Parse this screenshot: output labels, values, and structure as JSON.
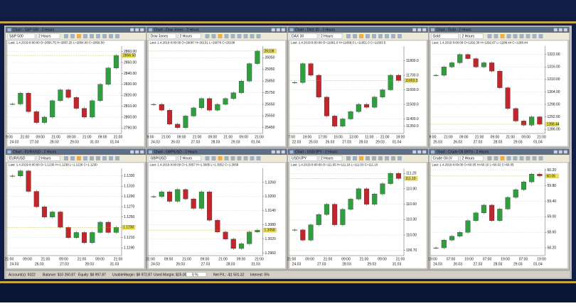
{
  "windows": [
    {
      "title": "Chart - S&P 500 - 2 Hours",
      "symbol": "S&P 500",
      "timeframe": "2 Hours",
      "info": "Last: 1.4.2019 8:00:00 O=2856.75 H=2857.25 L=2854.00 C=2856.50",
      "ylim": [
        2785,
        2865
      ],
      "yticks": [
        {
          "value": 2790,
          "label": "2790.00"
        },
        {
          "value": 2800,
          "label": "2800.00"
        },
        {
          "value": 2810,
          "label": "2810.00"
        },
        {
          "value": 2820,
          "label": "2820.00"
        },
        {
          "value": 2830,
          "label": "2830.00"
        },
        {
          "value": 2840,
          "label": "2840.00"
        },
        {
          "value": 2850,
          "label": "2850.00"
        },
        {
          "value": 2860,
          "label": "2860.00"
        }
      ],
      "times": [
        "9:00",
        "21:00",
        "09:00",
        "21:00",
        "09:00",
        "21:00",
        "09:00",
        "21:00"
      ],
      "dates": [
        "24.03",
        "27.03",
        "28.03",
        "29.03",
        "31.03",
        "01.04"
      ],
      "closes": [
        2812,
        2822,
        2805,
        2795,
        2800,
        2815,
        2825,
        2818,
        2808,
        2800,
        2815,
        2830,
        2845,
        2856.5
      ],
      "last": {
        "value": 2856.5,
        "label": "2856.50"
      }
    },
    {
      "title": "Chart - Dow Jones - 2 Hours",
      "symbol": "Dow Jones",
      "timeframe": "2 Hours",
      "info": "Last: 1.4.2019 8:00:00 O=26097 H=26131 L=26076 C=26108",
      "ylim": [
        25400,
        26150
      ],
      "yticks": [
        25450,
        25550,
        25650,
        25750,
        25850,
        25950,
        26050
      ],
      "times": [
        "9:00",
        "21:00",
        "09:00",
        "21:00",
        "09:00",
        "21:00",
        "09:00",
        "21:00"
      ],
      "dates": [
        "24.03",
        "26.03",
        "27.03",
        "28.03",
        "29.03",
        "01.04"
      ],
      "closes": [
        25650,
        25600,
        25480,
        25450,
        25550,
        25620,
        25700,
        25600,
        25650,
        25700,
        25750,
        25850,
        26000,
        26108
      ],
      "last": {
        "value": 26108,
        "label": "26108"
      }
    },
    {
      "title": "Chart - DAX 30 - 2 Hours",
      "symbol": "DAX 30",
      "timeframe": "2 Hours",
      "info": "Last: 1.4.2019 8:00:00 O=11661.0 H=11668.0 L=11651.0 C=11663.5",
      "ylim": [
        11300,
        11900
      ],
      "yticks": [
        {
          "value": 11350,
          "label": "11350.0"
        },
        {
          "value": 11400,
          "label": "11400.0"
        },
        {
          "value": 11500,
          "label": "11500.0"
        },
        {
          "value": 11600,
          "label": "11600.0"
        },
        {
          "value": 11700,
          "label": "11700.0"
        },
        {
          "value": 11800,
          "label": "11800.0"
        }
      ],
      "times": [
        "7:00",
        "19:00",
        "17:00",
        "15:00",
        "13:00",
        "11:00",
        "21:00",
        "19:00"
      ],
      "dates": [
        "22.03",
        "25.03",
        "26.03",
        "27.03",
        "28.03",
        "29.03",
        "01.04"
      ],
      "closes": [
        11650,
        11780,
        11700,
        11550,
        11420,
        11350,
        11400,
        11450,
        11500,
        11480,
        11550,
        11600,
        11700,
        11663.5
      ],
      "last": {
        "value": 11663.5,
        "label": "11663.5"
      }
    },
    {
      "title": "Chart - Gold - 2 Hours",
      "symbol": "Gold",
      "timeframe": "2 Hours",
      "info": "Last: 1.4.2019 8:00:00 O=1292.30 H=1292.67 L=1288.44 C=1288.44",
      "ylim": [
        1284,
        1326
      ],
      "yticks": [
        {
          "value": 1286,
          "label": "1286.00"
        },
        {
          "value": 1292,
          "label": "1292.00"
        },
        {
          "value": 1298,
          "label": "1298.00"
        },
        {
          "value": 1304,
          "label": "1304.00"
        },
        {
          "value": 1310,
          "label": "1310.00"
        },
        {
          "value": 1316,
          "label": "1316.00"
        },
        {
          "value": 1322,
          "label": "1322.00"
        }
      ],
      "times": [
        "9:00",
        "21:00",
        "09:00",
        "21:00",
        "09:00",
        "21:00",
        "09:00",
        "21:00"
      ],
      "dates": [
        "25.03",
        "26.03",
        "27.03",
        "28.03",
        "29.03",
        "01.04"
      ],
      "closes": [
        1312,
        1316,
        1318,
        1322,
        1320,
        1316,
        1318,
        1314,
        1306,
        1296,
        1290,
        1288,
        1292,
        1288.44
      ],
      "last": {
        "value": 1288.44,
        "label": "1288.44"
      }
    },
    {
      "title": "Chart - EUR/USD - 2 Hours",
      "symbol": "EUR/USD",
      "timeframe": "2 Hours",
      "info": "Last: 1.4.2019 8:00:00 O=1.1230 H=1.1238 L=1.1229 C=1.1230",
      "ylim": [
        1.1175,
        1.1345
      ],
      "yticks": [
        {
          "value": 1.119,
          "label": "1.1190"
        },
        {
          "value": 1.121,
          "label": "1.1210"
        },
        {
          "value": 1.123,
          "label": "1.1230"
        },
        {
          "value": 1.125,
          "label": "1.1250"
        },
        {
          "value": 1.127,
          "label": "1.1270"
        },
        {
          "value": 1.129,
          "label": "1.1290"
        },
        {
          "value": 1.131,
          "label": "1.1310"
        },
        {
          "value": 1.133,
          "label": "1.1330"
        }
      ],
      "times": [
        "21:00",
        "09:00",
        "21:00",
        "09:00",
        "21:00",
        "09:00",
        "21:00"
      ],
      "dates": [
        "24.03",
        "26.03",
        "27.03",
        "28.03",
        "31.03"
      ],
      "closes": [
        1.133,
        1.134,
        1.13,
        1.127,
        1.125,
        1.126,
        1.123,
        1.121,
        1.122,
        1.12,
        1.122,
        1.124,
        1.122,
        1.123
      ],
      "last": {
        "value": 1.123,
        "label": "1.1230"
      }
    },
    {
      "title": "Chart - GBP/USD - 2 Hours",
      "symbol": "GBP/USD",
      "timeframe": "2 Hours",
      "info": "Last: 1.4.2019 8:00:00 O=1.3057 H=1.3085 L=1.3052 C=1.3058",
      "ylim": [
        1.295,
        1.332
      ],
      "yticks": [
        {
          "value": 1.296,
          "label": "1.2960"
        },
        {
          "value": 1.302,
          "label": "1.3020"
        },
        {
          "value": 1.308,
          "label": "1.3080"
        },
        {
          "value": 1.314,
          "label": "1.3140"
        },
        {
          "value": 1.32,
          "label": "1.3200"
        },
        {
          "value": 1.326,
          "label": "1.3260"
        }
      ],
      "times": [
        "21:00",
        "09:00",
        "21:00",
        "09:00",
        "21:00",
        "09:00",
        "21:00"
      ],
      "dates": [
        "24.03",
        "26.03",
        "27.03",
        "28.03",
        "31.03"
      ],
      "closes": [
        1.32,
        1.322,
        1.318,
        1.323,
        1.319,
        1.315,
        1.322,
        1.31,
        1.305,
        1.302,
        1.298,
        1.3,
        1.305,
        1.3058
      ],
      "last": {
        "value": 1.3058,
        "label": "1.3058"
      }
    },
    {
      "title": "Chart - USD/JPY - 2 Hours",
      "symbol": "USD/JPY",
      "timeframe": "2 Hours",
      "info": "Last: 1.4.2019 8:00:00 O=111.05 H=111.18 L=111.03 C=111.10",
      "ylim": [
        109.6,
        111.3
      ],
      "yticks": [
        {
          "value": 109.7,
          "label": "109.70"
        },
        {
          "value": 110,
          "label": "110.00"
        },
        {
          "value": 110.3,
          "label": "110.30"
        },
        {
          "value": 110.6,
          "label": "110.60"
        },
        {
          "value": 110.9,
          "label": "110.90"
        },
        {
          "value": 111.2,
          "label": "111.20"
        }
      ],
      "times": [
        "21:00",
        "09:00",
        "21:00",
        "09:00",
        "21:00",
        "09:00",
        "21:00"
      ],
      "dates": [
        "24.03",
        "27.03",
        "28.03",
        "29.03",
        "31.03"
      ],
      "closes": [
        110.1,
        109.9,
        110.2,
        110.4,
        110.6,
        110.2,
        110.5,
        110.7,
        110.9,
        110.6,
        110.8,
        111,
        111.2,
        111.1
      ],
      "last": {
        "value": 111.1,
        "label": "111.10"
      }
    },
    {
      "title": "Chart - Crude Oil (WTI) - 2 Hours",
      "symbol": "Crude Oil (V",
      "timeframe": "2 Hours",
      "info": "Last: 1.4.2019 8:00:00 O=60.05 H=60.10 L=60.02 C=60.05",
      "ylim": [
        58,
        60.25
      ],
      "yticks": [
        {
          "value": 58.2,
          "label": "58.20"
        },
        {
          "value": 58.6,
          "label": "58.60"
        },
        {
          "value": 59,
          "label": "59.00"
        },
        {
          "value": 59.4,
          "label": "59.40"
        },
        {
          "value": 59.8,
          "label": "59.80"
        },
        {
          "value": 60.2,
          "label": "60.20"
        }
      ],
      "times": [
        "19:00",
        "07:00",
        "19:00",
        "07:00",
        "19:00",
        "07:00",
        "19:00"
      ],
      "dates": [
        "24.03",
        "26.03",
        "27.03",
        "28.03",
        "29.03",
        "01.04"
      ],
      "closes": [
        58.2,
        58.4,
        58.5,
        58.6,
        58.9,
        59.1,
        59.3,
        58.9,
        59.2,
        59.5,
        59.7,
        59.9,
        60.1,
        60.05
      ],
      "last": {
        "value": 60.05,
        "label": "60.05"
      }
    }
  ],
  "status": [
    "Account(s): 9322",
    "Balance: $10 260.87",
    "Equity: $8 997.87",
    "UsableMargin: $8 972.87",
    "Used Margin: $25.00",
    "0 %",
    "Net P/L: -$1 501.32",
    "Interest: 5%"
  ]
}
